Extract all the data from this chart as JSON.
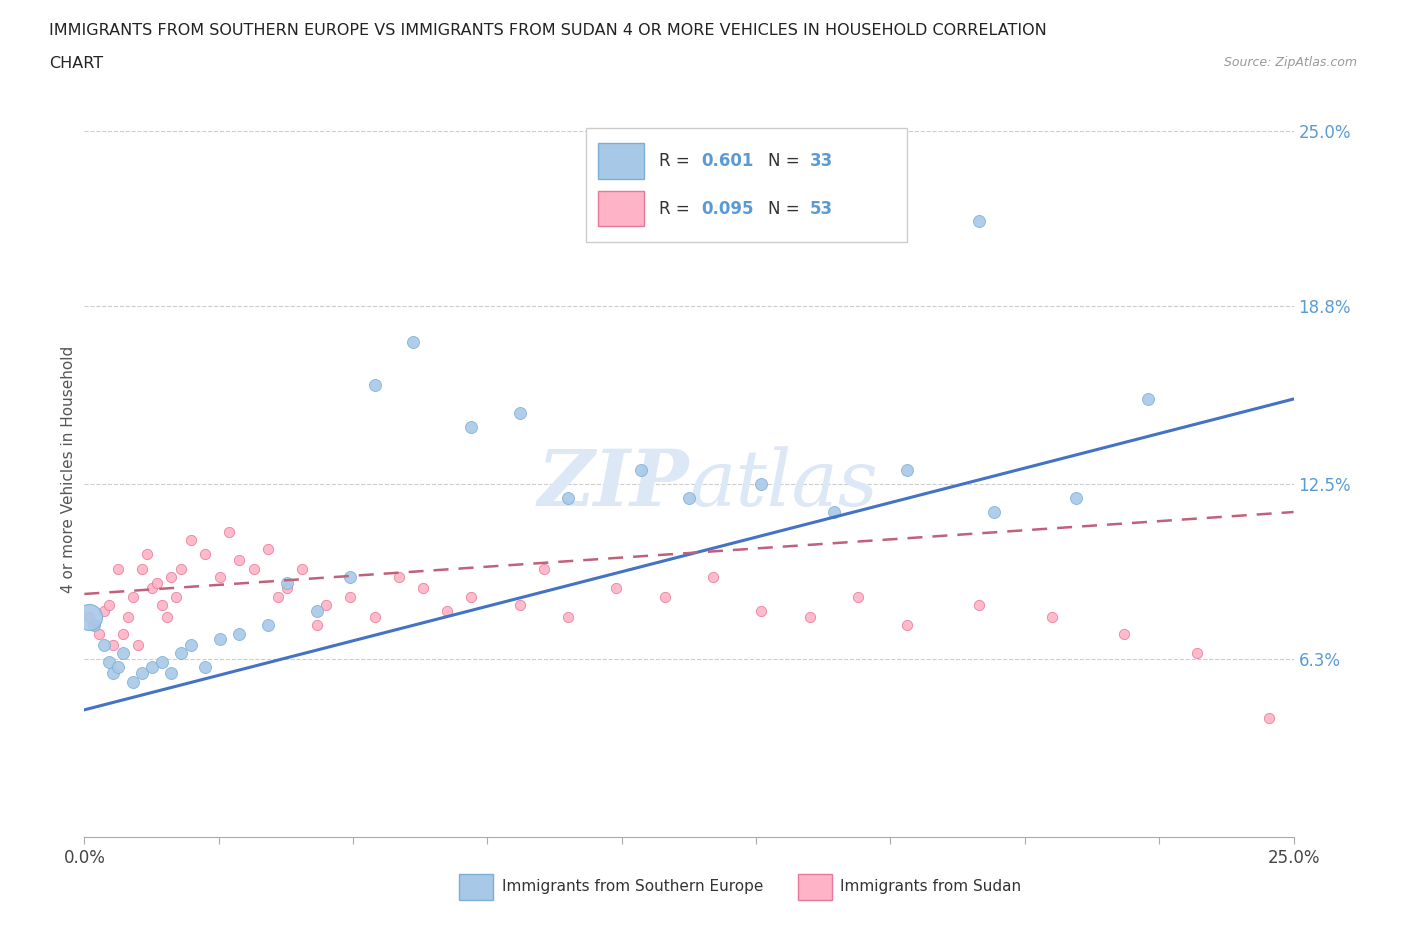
{
  "title_line1": "IMMIGRANTS FROM SOUTHERN EUROPE VS IMMIGRANTS FROM SUDAN 4 OR MORE VEHICLES IN HOUSEHOLD CORRELATION",
  "title_line2": "CHART",
  "source": "Source: ZipAtlas.com",
  "ylabel": "4 or more Vehicles in Household",
  "xmin": 0.0,
  "xmax": 0.25,
  "ymin": 0.0,
  "ymax": 0.26,
  "yticks": [
    0.063,
    0.125,
    0.188,
    0.25
  ],
  "ytick_labels": [
    "6.3%",
    "12.5%",
    "18.8%",
    "25.0%"
  ],
  "legend_r1_color": "#5b9bd5",
  "legend_r2_color": "#ff69b4",
  "blue_line_color": "#4472c4",
  "pink_line_color": "#c0607a",
  "blue_fill": "#a8c8e8",
  "blue_edge": "#7aafd4",
  "pink_fill": "#ffb3c6",
  "pink_edge": "#e87898",
  "watermark_color": "#dce8f5",
  "grid_color": "#cccccc",
  "se_x": [
    0.002,
    0.004,
    0.005,
    0.006,
    0.007,
    0.008,
    0.01,
    0.012,
    0.014,
    0.016,
    0.018,
    0.02,
    0.022,
    0.025,
    0.028,
    0.032,
    0.038,
    0.042,
    0.048,
    0.055,
    0.06,
    0.068,
    0.08,
    0.09,
    0.1,
    0.115,
    0.125,
    0.14,
    0.155,
    0.17,
    0.188,
    0.205,
    0.22
  ],
  "se_y": [
    0.075,
    0.068,
    0.062,
    0.058,
    0.06,
    0.065,
    0.055,
    0.058,
    0.06,
    0.062,
    0.058,
    0.065,
    0.068,
    0.06,
    0.07,
    0.072,
    0.075,
    0.09,
    0.08,
    0.092,
    0.16,
    0.175,
    0.145,
    0.15,
    0.12,
    0.13,
    0.12,
    0.125,
    0.115,
    0.13,
    0.115,
    0.12,
    0.155
  ],
  "se_large_x": [
    0.001
  ],
  "se_large_y": [
    0.078
  ],
  "se_outlier_x": [
    0.185
  ],
  "se_outlier_y": [
    0.218
  ],
  "su_x": [
    0.001,
    0.002,
    0.003,
    0.004,
    0.005,
    0.006,
    0.007,
    0.008,
    0.009,
    0.01,
    0.011,
    0.012,
    0.013,
    0.014,
    0.015,
    0.016,
    0.017,
    0.018,
    0.019,
    0.02,
    0.022,
    0.025,
    0.028,
    0.03,
    0.032,
    0.035,
    0.038,
    0.04,
    0.042,
    0.045,
    0.048,
    0.05,
    0.055,
    0.06,
    0.065,
    0.07,
    0.075,
    0.08,
    0.09,
    0.095,
    0.1,
    0.11,
    0.12,
    0.13,
    0.14,
    0.15,
    0.16,
    0.17,
    0.185,
    0.2,
    0.215,
    0.23,
    0.245
  ],
  "su_y": [
    0.078,
    0.075,
    0.072,
    0.08,
    0.082,
    0.068,
    0.095,
    0.072,
    0.078,
    0.085,
    0.068,
    0.095,
    0.1,
    0.088,
    0.09,
    0.082,
    0.078,
    0.092,
    0.085,
    0.095,
    0.105,
    0.1,
    0.092,
    0.108,
    0.098,
    0.095,
    0.102,
    0.085,
    0.088,
    0.095,
    0.075,
    0.082,
    0.085,
    0.078,
    0.092,
    0.088,
    0.08,
    0.085,
    0.082,
    0.095,
    0.078,
    0.088,
    0.085,
    0.092,
    0.08,
    0.078,
    0.085,
    0.075,
    0.082,
    0.078,
    0.072,
    0.065,
    0.042
  ]
}
